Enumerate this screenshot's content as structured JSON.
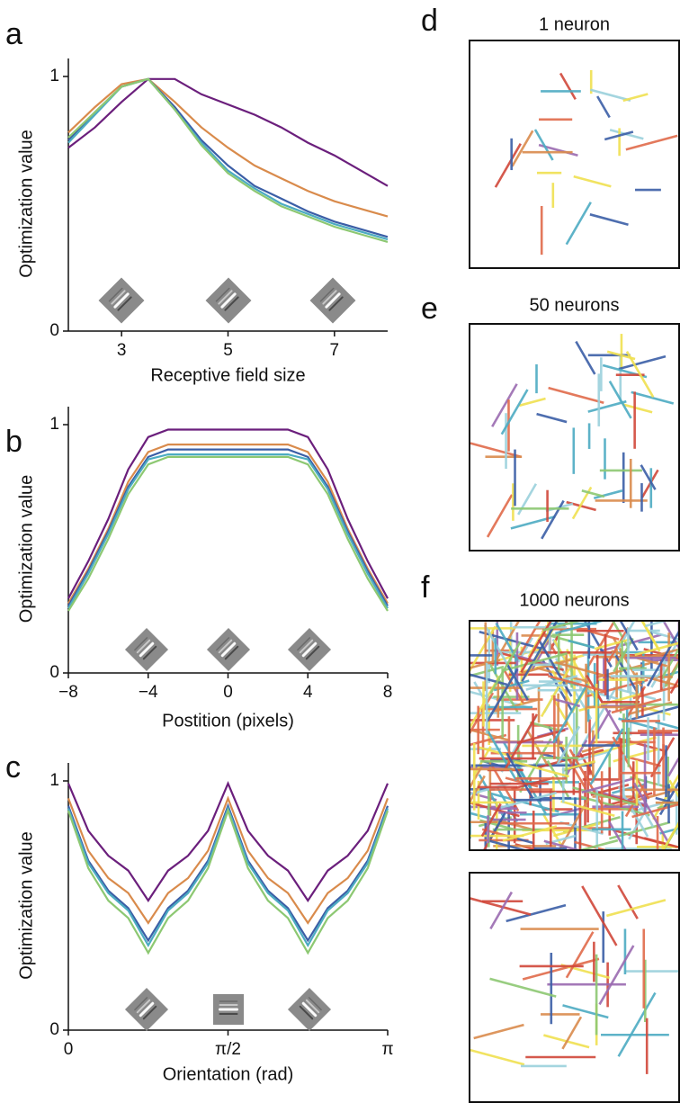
{
  "chart_data": [
    {
      "type": "line",
      "panel_label": "a",
      "x_label": "Receptive field size",
      "y_label": "Optimization value",
      "x": [
        2,
        2.5,
        3,
        3.5,
        4,
        4.5,
        5,
        5.5,
        6,
        6.5,
        7,
        7.5,
        8
      ],
      "xlim": [
        2,
        8
      ],
      "xticks": [
        3,
        5,
        7
      ],
      "ylim": [
        0,
        1
      ],
      "yticks": [
        0,
        1
      ],
      "series": [
        {
          "color": "#6b1f7c",
          "values": [
            0.72,
            0.8,
            0.9,
            0.99,
            0.99,
            0.93,
            0.89,
            0.85,
            0.8,
            0.74,
            0.69,
            0.63,
            0.57
          ]
        },
        {
          "color": "#d98b4c",
          "values": [
            0.78,
            0.88,
            0.97,
            0.99,
            0.9,
            0.8,
            0.72,
            0.65,
            0.6,
            0.55,
            0.51,
            0.48,
            0.45
          ]
        },
        {
          "color": "#3b5ea6",
          "values": [
            0.75,
            0.86,
            0.96,
            0.99,
            0.88,
            0.75,
            0.65,
            0.57,
            0.52,
            0.47,
            0.43,
            0.4,
            0.37
          ]
        },
        {
          "color": "#4cabc2",
          "values": [
            0.74,
            0.85,
            0.96,
            0.99,
            0.87,
            0.74,
            0.63,
            0.56,
            0.5,
            0.46,
            0.42,
            0.39,
            0.36
          ]
        },
        {
          "color": "#8dc872",
          "values": [
            0.76,
            0.86,
            0.96,
            0.99,
            0.87,
            0.73,
            0.62,
            0.55,
            0.49,
            0.45,
            0.41,
            0.38,
            0.35
          ]
        }
      ]
    },
    {
      "type": "line",
      "panel_label": "b",
      "x_label": "Postition (pixels)",
      "y_label": "Optimization value",
      "x": [
        -8,
        -7,
        -6,
        -5,
        -4,
        -3,
        -2,
        -1,
        0,
        1,
        2,
        3,
        4,
        5,
        6,
        7,
        8
      ],
      "xlim": [
        -8,
        8
      ],
      "xticks": [
        {
          "value": -8,
          "label": "−8"
        },
        {
          "value": -4,
          "label": "−4"
        },
        0,
        4,
        8
      ],
      "ylim": [
        0,
        1
      ],
      "yticks": [
        0,
        1
      ],
      "series": [
        {
          "color": "#6b1f7c",
          "values": [
            0.3,
            0.45,
            0.62,
            0.82,
            0.95,
            0.98,
            0.98,
            0.98,
            0.98,
            0.98,
            0.98,
            0.98,
            0.95,
            0.82,
            0.62,
            0.45,
            0.3
          ]
        },
        {
          "color": "#d98b4c",
          "values": [
            0.28,
            0.42,
            0.58,
            0.77,
            0.89,
            0.92,
            0.92,
            0.92,
            0.92,
            0.92,
            0.92,
            0.92,
            0.89,
            0.77,
            0.58,
            0.42,
            0.28
          ]
        },
        {
          "color": "#3b5ea6",
          "values": [
            0.27,
            0.41,
            0.57,
            0.75,
            0.87,
            0.9,
            0.9,
            0.9,
            0.9,
            0.9,
            0.9,
            0.9,
            0.87,
            0.75,
            0.57,
            0.41,
            0.27
          ]
        },
        {
          "color": "#4cabc2",
          "values": [
            0.26,
            0.4,
            0.56,
            0.74,
            0.86,
            0.88,
            0.88,
            0.88,
            0.88,
            0.88,
            0.88,
            0.88,
            0.86,
            0.74,
            0.56,
            0.4,
            0.26
          ]
        },
        {
          "color": "#8dc872",
          "values": [
            0.25,
            0.38,
            0.54,
            0.72,
            0.84,
            0.87,
            0.87,
            0.87,
            0.87,
            0.87,
            0.87,
            0.87,
            0.84,
            0.72,
            0.54,
            0.38,
            0.25
          ]
        }
      ]
    },
    {
      "type": "line",
      "panel_label": "c",
      "x_label": "Orientation (rad)",
      "y_label": "Optimization value",
      "x": [
        0,
        0.1963,
        0.3927,
        0.589,
        0.7854,
        0.9817,
        1.1781,
        1.3744,
        1.5708,
        1.7671,
        1.9635,
        2.1598,
        2.3562,
        2.5525,
        2.7489,
        2.9452,
        3.1416
      ],
      "xlim": [
        0,
        3.1416
      ],
      "xticks": [
        0,
        {
          "value": 1.5708,
          "label": "π/2"
        },
        {
          "value": 3.1416,
          "label": "π"
        }
      ],
      "ylim": [
        0,
        1
      ],
      "yticks": [
        0,
        1
      ],
      "series": [
        {
          "color": "#6b1f7c",
          "values": [
            0.99,
            0.8,
            0.7,
            0.64,
            0.52,
            0.64,
            0.7,
            0.8,
            0.99,
            0.8,
            0.7,
            0.64,
            0.52,
            0.64,
            0.7,
            0.8,
            0.99
          ]
        },
        {
          "color": "#d98b4c",
          "values": [
            0.93,
            0.72,
            0.61,
            0.55,
            0.43,
            0.55,
            0.61,
            0.72,
            0.93,
            0.72,
            0.61,
            0.55,
            0.43,
            0.55,
            0.61,
            0.72,
            0.93
          ]
        },
        {
          "color": "#3b5ea6",
          "values": [
            0.9,
            0.68,
            0.56,
            0.49,
            0.36,
            0.49,
            0.56,
            0.68,
            0.9,
            0.68,
            0.56,
            0.49,
            0.36,
            0.49,
            0.56,
            0.68,
            0.9
          ]
        },
        {
          "color": "#4cabc2",
          "values": [
            0.89,
            0.67,
            0.55,
            0.48,
            0.34,
            0.48,
            0.55,
            0.67,
            0.89,
            0.67,
            0.55,
            0.48,
            0.34,
            0.48,
            0.55,
            0.67,
            0.89
          ]
        },
        {
          "color": "#8dc872",
          "values": [
            0.88,
            0.65,
            0.52,
            0.45,
            0.31,
            0.45,
            0.52,
            0.65,
            0.88,
            0.65,
            0.52,
            0.45,
            0.31,
            0.45,
            0.52,
            0.65,
            0.88
          ]
        }
      ]
    },
    {
      "type": "segments",
      "panel_label": "d",
      "title": "1 neuron"
    },
    {
      "type": "segments",
      "panel_label": "e",
      "title": "50 neurons"
    },
    {
      "type": "segments",
      "panel_label": "f",
      "title": "1000 neurons"
    },
    {
      "type": "segments"
    }
  ]
}
